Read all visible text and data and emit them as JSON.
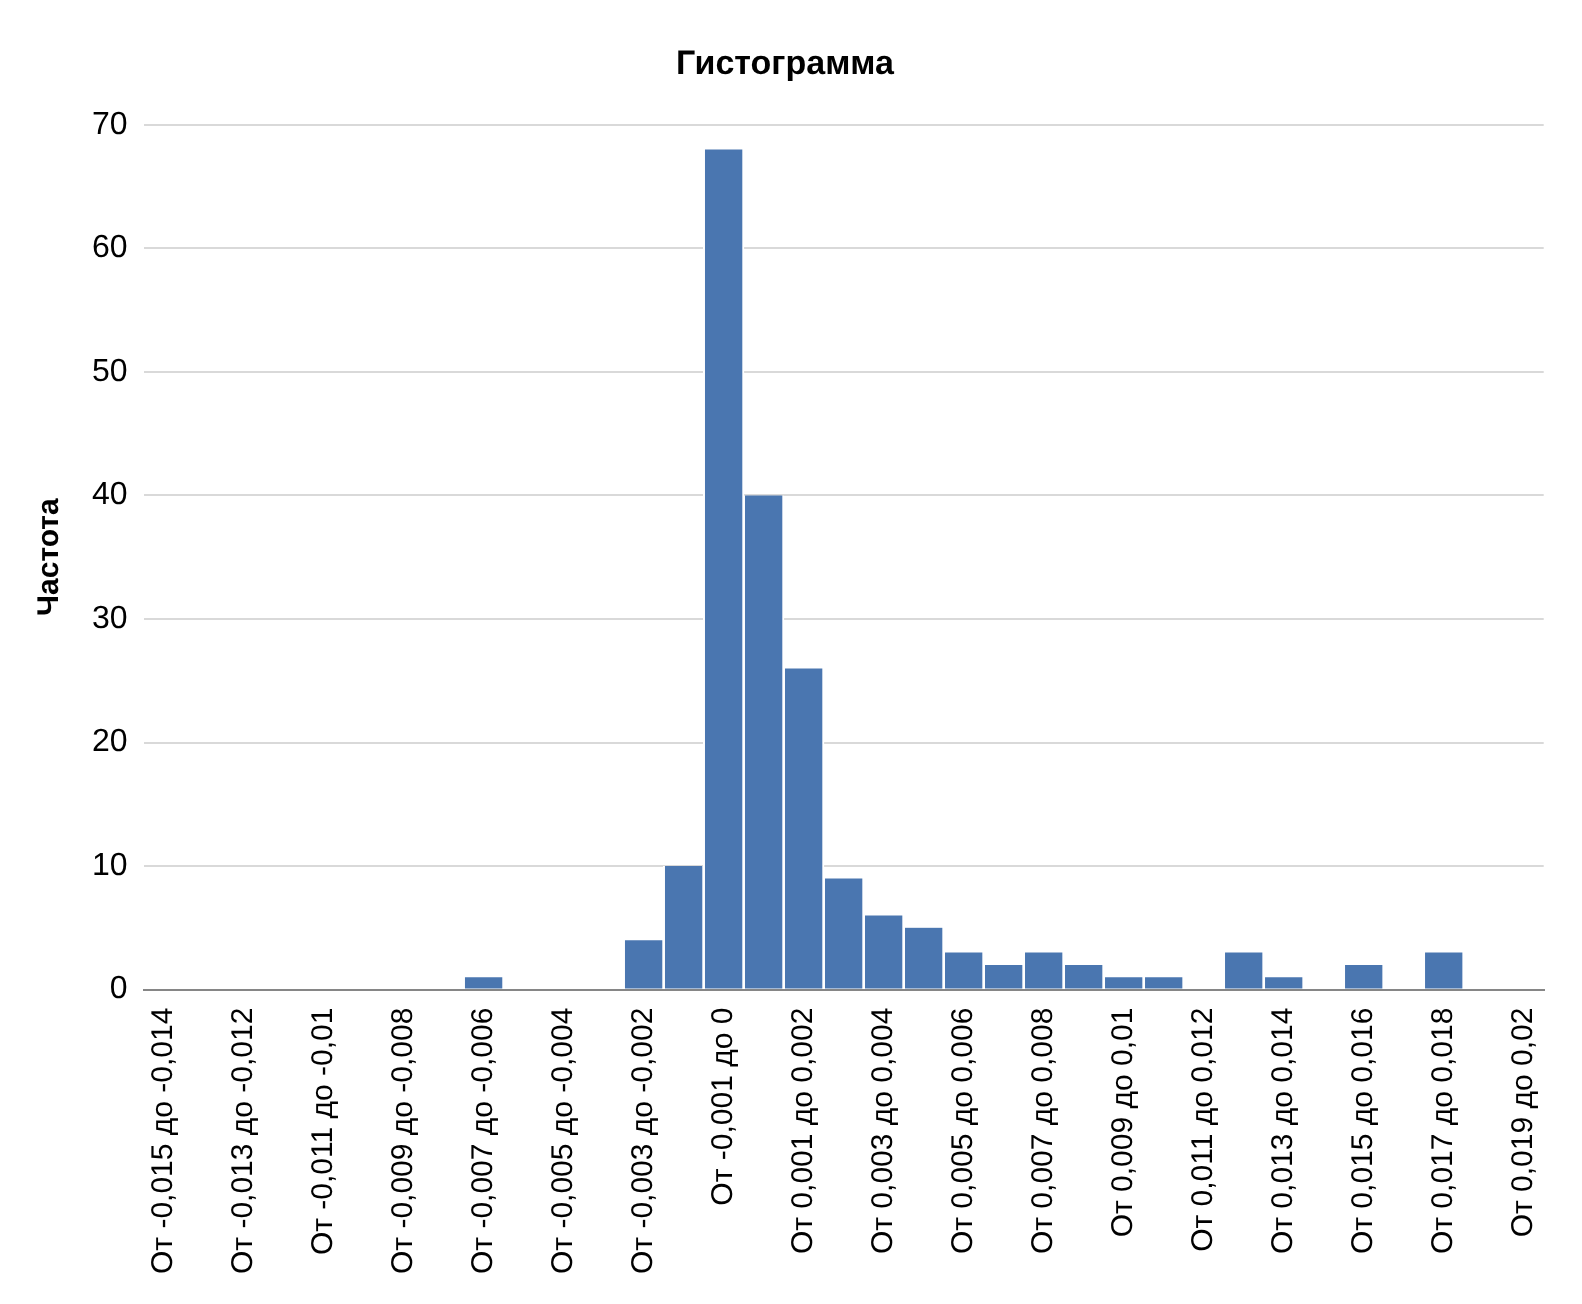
{
  "chart_data": {
    "type": "bar",
    "title": "Гистограмма",
    "ylabel": "Частота",
    "categories": [
      "От -0,015 до -0,014",
      null,
      "От -0,013 до -0,012",
      null,
      "От -0,011 до -0,01",
      null,
      "От -0,009 до -0,008",
      null,
      "От -0,007 до -0,006",
      null,
      "От -0,005 до -0,004",
      null,
      "От -0,003 до -0,002",
      null,
      "От -0,001 до 0",
      null,
      "От 0,001 до 0,002",
      null,
      "От 0,003 до 0,004",
      null,
      "От 0,005 до 0,006",
      null,
      "От 0,007 до 0,008",
      null,
      "От 0,009 до 0,01",
      null,
      "От 0,011 до 0,012",
      null,
      "От 0,013 до 0,014",
      null,
      "От 0,015 до 0,016",
      null,
      "От 0,017 до 0,018",
      null,
      "От 0,019 до 0,02"
    ],
    "values": [
      0,
      0,
      0,
      0,
      0,
      0,
      0,
      0,
      1,
      0,
      0,
      0,
      4,
      10,
      68,
      40,
      26,
      9,
      6,
      5,
      3,
      2,
      3,
      2,
      1,
      1,
      0,
      3,
      1,
      0,
      2,
      0,
      3,
      0,
      0
    ],
    "color": "#4a76b0",
    "ylim": [
      0,
      70
    ],
    "yticks": [
      0,
      10,
      20,
      30,
      40,
      50,
      60,
      70
    ],
    "grid": "y",
    "legend": false
  }
}
